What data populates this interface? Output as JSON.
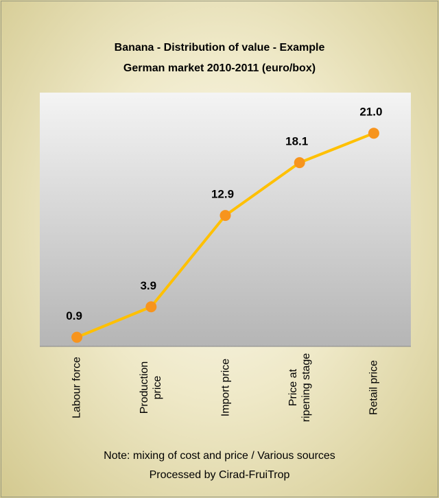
{
  "chart_data": {
    "type": "line",
    "title": "Banana - Distribution of value - Example",
    "subtitle": "German market 2010-2011 (euro/box)",
    "categories": [
      "Labour force",
      "Production price",
      "Import price",
      "Price at ripening stage",
      "Retail price"
    ],
    "values": [
      0.9,
      3.9,
      12.9,
      18.1,
      21.0
    ],
    "value_labels": [
      "0.9",
      "3.9",
      "12.9",
      "18.1",
      "21.0"
    ],
    "color": "#ffc000",
    "marker_color": "#f7941d",
    "ylim": [
      0,
      25
    ],
    "notes": [
      "Note: mixing of cost and price / Various sources",
      "Processed by Cirad-FruiTrop"
    ]
  }
}
